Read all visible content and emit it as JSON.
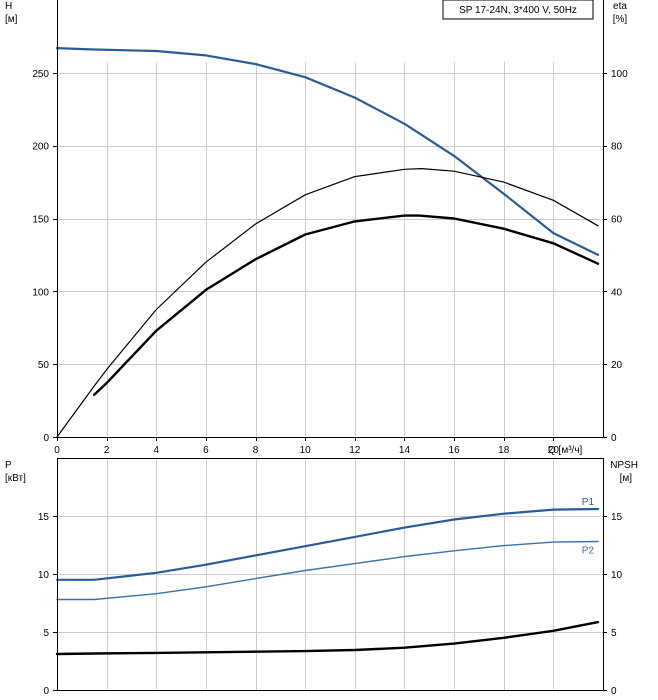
{
  "header": {
    "pump_label": "SP 17-24N, 3*400 V, 50Hz"
  },
  "colors": {
    "blue": "#2a5c94",
    "blue_light": "#3a6fa8",
    "black": "#000000",
    "grid": "#cccccc"
  },
  "chart_data": [
    {
      "type": "line",
      "name": "head_efficiency",
      "xlabel": "Q [м³/ч]",
      "ylabel_left": [
        "H",
        "[м]"
      ],
      "ylabel_right": [
        "eta",
        "[%]"
      ],
      "xlim": [
        0,
        22
      ],
      "ylim_left": [
        0,
        300
      ],
      "ylim_right": [
        0,
        120
      ],
      "x_ticks": [
        "0",
        "2",
        "4",
        "6",
        "8",
        "10",
        "12",
        "14",
        "16",
        "18",
        "20"
      ],
      "y_ticks_left": [
        "0",
        "50",
        "100",
        "150",
        "200",
        "250"
      ],
      "y_ticks_right": [
        "0",
        "20",
        "40",
        "60",
        "80",
        "100"
      ],
      "grid": true,
      "series": [
        {
          "color": "#2a5c94",
          "width": 2.2,
          "axis": "left",
          "x": [
            0,
            1.5,
            4,
            6,
            8,
            10,
            12,
            14,
            16,
            18,
            20,
            21.8
          ],
          "y": [
            267,
            266,
            265,
            262,
            256,
            247,
            233,
            215,
            193,
            167,
            140,
            125
          ]
        },
        {
          "color": "#000000",
          "width": 1.2,
          "axis": "right",
          "x": [
            0,
            1.5,
            2,
            4,
            6,
            8,
            10,
            12,
            14,
            14.7,
            16,
            18,
            20,
            21.8
          ],
          "y": [
            0,
            14,
            18.5,
            35,
            48,
            58.5,
            66.5,
            71.5,
            73.5,
            73.7,
            73,
            70,
            65,
            58
          ]
        },
        {
          "color": "#000000",
          "width": 2.4,
          "axis": "left",
          "x": [
            1.5,
            2,
            4,
            6,
            8,
            10,
            12,
            14,
            14.6,
            16,
            18,
            20,
            21.8
          ],
          "y": [
            29,
            37,
            73,
            101,
            122,
            139,
            148,
            152,
            152,
            150,
            143,
            133,
            119
          ]
        }
      ]
    },
    {
      "type": "line",
      "name": "power_npsh",
      "ylabel_left": [
        "P",
        "[кВт]"
      ],
      "ylabel_right": [
        "NPSH",
        "[м]"
      ],
      "xlim": [
        0,
        22
      ],
      "ylim_left": [
        0,
        20
      ],
      "ylim_right": [
        0,
        20
      ],
      "y_ticks_left": [
        "0",
        "5",
        "10",
        "15"
      ],
      "y_ticks_right": [
        "0",
        "5",
        "10",
        "15"
      ],
      "grid": true,
      "series": [
        {
          "name": "P1",
          "color": "#2a5c94",
          "width": 2.2,
          "axis": "left",
          "x": [
            0,
            1.5,
            4,
            6,
            8,
            10,
            12,
            14,
            16,
            18,
            20,
            21.8
          ],
          "y": [
            9.5,
            9.5,
            10.1,
            10.8,
            11.6,
            12.4,
            13.2,
            14.0,
            14.7,
            15.2,
            15.55,
            15.6
          ]
        },
        {
          "name": "P2",
          "color": "#3a6fa8",
          "width": 1.4,
          "axis": "left",
          "x": [
            0,
            1.5,
            4,
            6,
            8,
            10,
            12,
            14,
            16,
            18,
            20,
            21.8
          ],
          "y": [
            7.8,
            7.8,
            8.3,
            8.9,
            9.6,
            10.3,
            10.9,
            11.5,
            12.0,
            12.45,
            12.75,
            12.8
          ]
        },
        {
          "color": "#000000",
          "width": 2.4,
          "axis": "right",
          "x": [
            0,
            1.5,
            4,
            6,
            8,
            10,
            12,
            14,
            16,
            18,
            20,
            21.8
          ],
          "y": [
            3.1,
            3.15,
            3.2,
            3.25,
            3.3,
            3.35,
            3.45,
            3.65,
            4.0,
            4.5,
            5.1,
            5.85
          ]
        }
      ]
    }
  ]
}
